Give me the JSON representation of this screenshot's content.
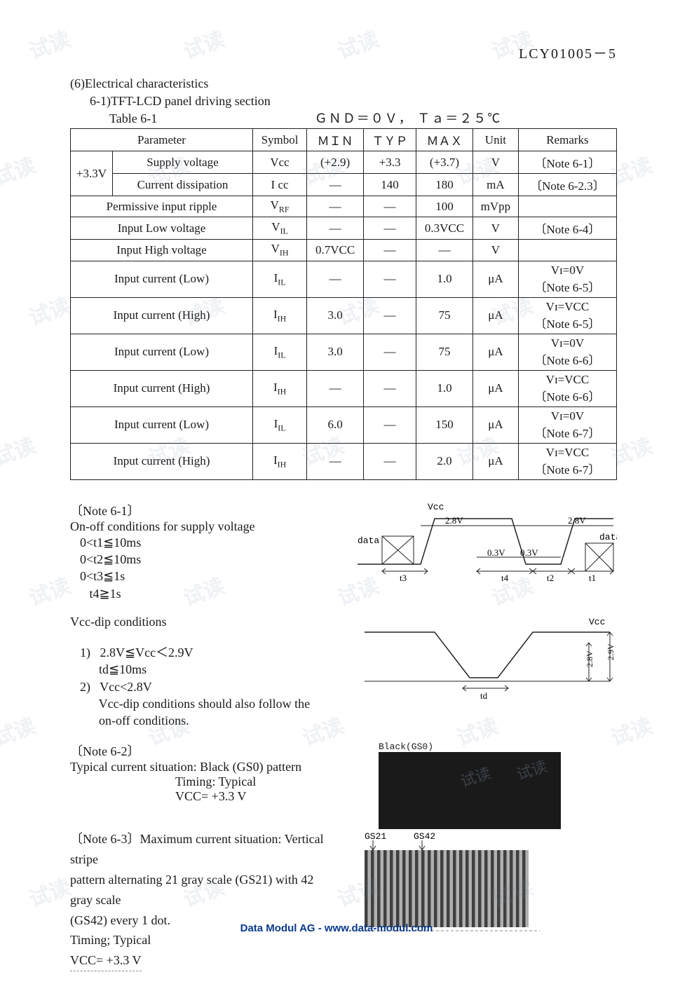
{
  "doc_code": "LCY01005－5",
  "section": "(6)Electrical characteristics",
  "subsection": "6-1)TFT-LCD panel driving section",
  "table_label": "Table 6-1",
  "table_condition": "ＧＮＤ＝０Ｖ， Ｔａ＝２５℃",
  "table": {
    "headers": [
      "Parameter",
      "Symbol",
      "ＭＩＮ",
      "ＴＹＰ",
      "ＭＡＸ",
      "Unit",
      "Remarks"
    ],
    "rows": [
      {
        "param_prefix": "+3.3V",
        "param": "Supply voltage",
        "symbol": "Vcc",
        "min": "(+2.9)",
        "typ": "+3.3",
        "max": "(+3.7)",
        "unit": "V",
        "remarks": "〔Note 6-1〕"
      },
      {
        "param_prefix": "",
        "param": "Current dissipation",
        "symbol": "I cc",
        "min": "—",
        "typ": "140",
        "max": "180",
        "unit": "mA",
        "remarks": "〔Note 6-2.3〕"
      },
      {
        "param": "Permissive input ripple",
        "symbol": "V_RF",
        "min": "—",
        "typ": "—",
        "max": "100",
        "unit": "mVpp",
        "remarks": ""
      },
      {
        "param": "Input Low voltage",
        "symbol": "V_IL",
        "min": "—",
        "typ": "—",
        "max": "0.3VCC",
        "unit": "V",
        "remarks": "〔Note 6-4〕"
      },
      {
        "param": "Input High voltage",
        "symbol": "V_IH",
        "min": "0.7VCC",
        "typ": "—",
        "max": "—",
        "unit": "V",
        "remarks": ""
      },
      {
        "param": "Input current (Low)",
        "symbol": "I_IL",
        "min": "—",
        "typ": "—",
        "max": "1.0",
        "unit": "μA",
        "remarks": "Vɪ=0V\n〔Note 6-5〕"
      },
      {
        "param": "Input current (High)",
        "symbol": "I_IH",
        "min": "3.0",
        "typ": "—",
        "max": "75",
        "unit": "μA",
        "remarks": "Vɪ=VCC\n〔Note 6-5〕"
      },
      {
        "param": "Input current (Low)",
        "symbol": "I_IL",
        "min": "3.0",
        "typ": "—",
        "max": "75",
        "unit": "μA",
        "remarks": "Vɪ=0V\n〔Note 6-6〕"
      },
      {
        "param": "Input current (High)",
        "symbol": "I_IH",
        "min": "—",
        "typ": "—",
        "max": "1.0",
        "unit": "μA",
        "remarks": "Vɪ=VCC\n〔Note 6-6〕"
      },
      {
        "param": "Input current (Low)",
        "symbol": "I_IL",
        "min": "6.0",
        "typ": "—",
        "max": "150",
        "unit": "μA",
        "remarks": "Vɪ=0V\n〔Note 6-7〕"
      },
      {
        "param": "Input current (High)",
        "symbol": "I_IH",
        "min": "—",
        "typ": "—",
        "max": "2.0",
        "unit": "μA",
        "remarks": "Vɪ=VCC\n〔Note 6-7〕"
      }
    ]
  },
  "note61": {
    "head": "〔Note 6-1〕",
    "line1": "On-off conditions for supply voltage",
    "conds": [
      "0<t1≦10ms",
      "0<t2≦10ms",
      "0<t3≦1s",
      "   t4≧1s"
    ]
  },
  "vccdip": {
    "head": "Vcc-dip conditions",
    "item1a": "1)   2.8V≦Vcc＜2.9V",
    "item1b": "      td≦10ms",
    "item2a": "2)   Vcc<2.8V",
    "item2b": "      Vcc-dip conditions should also follow the",
    "item2c": "      on-off conditions."
  },
  "note62": {
    "head": "〔Note 6-2〕",
    "l1": "Typical current situation: Black (GS0) pattern",
    "l2": "Timing: Typical",
    "l3": "VCC= +3.3 V"
  },
  "note63": {
    "l1": "〔Note 6-3〕Maximum current situation: Vertical stripe",
    "l2": "pattern alternating 21 gray scale (GS21) with 42 gray scale",
    "l3": "(GS42) every 1 dot.",
    "l4": "Timing; Typical",
    "l5": "VCC= +3.3 V"
  },
  "diagram1": {
    "vcc_label": "Vcc",
    "data_left": "data",
    "data_right": "data",
    "v28": "2.8V",
    "v03": "0.3V",
    "t1": "t1",
    "t2": "t2",
    "t3": "t3",
    "t4": "t4"
  },
  "diagram2": {
    "vcc": "Vcc",
    "td": "td",
    "v28": "2.8V",
    "v29": "2.9V"
  },
  "diagram3": {
    "label": "Black(GS0)"
  },
  "diagram4": {
    "gs21": "GS21",
    "gs42": "GS42"
  },
  "footer": {
    "company": "Data Modul AG",
    "sep": "   -   ",
    "url": "www.data-modul.com"
  },
  "colors": {
    "text": "#1a1a1a",
    "border": "#222222",
    "footer": "#0b3a8c",
    "watermark": "rgba(120,140,170,0.12)",
    "stripe_dark": "#404040",
    "stripe_light": "#b0b0b0"
  }
}
